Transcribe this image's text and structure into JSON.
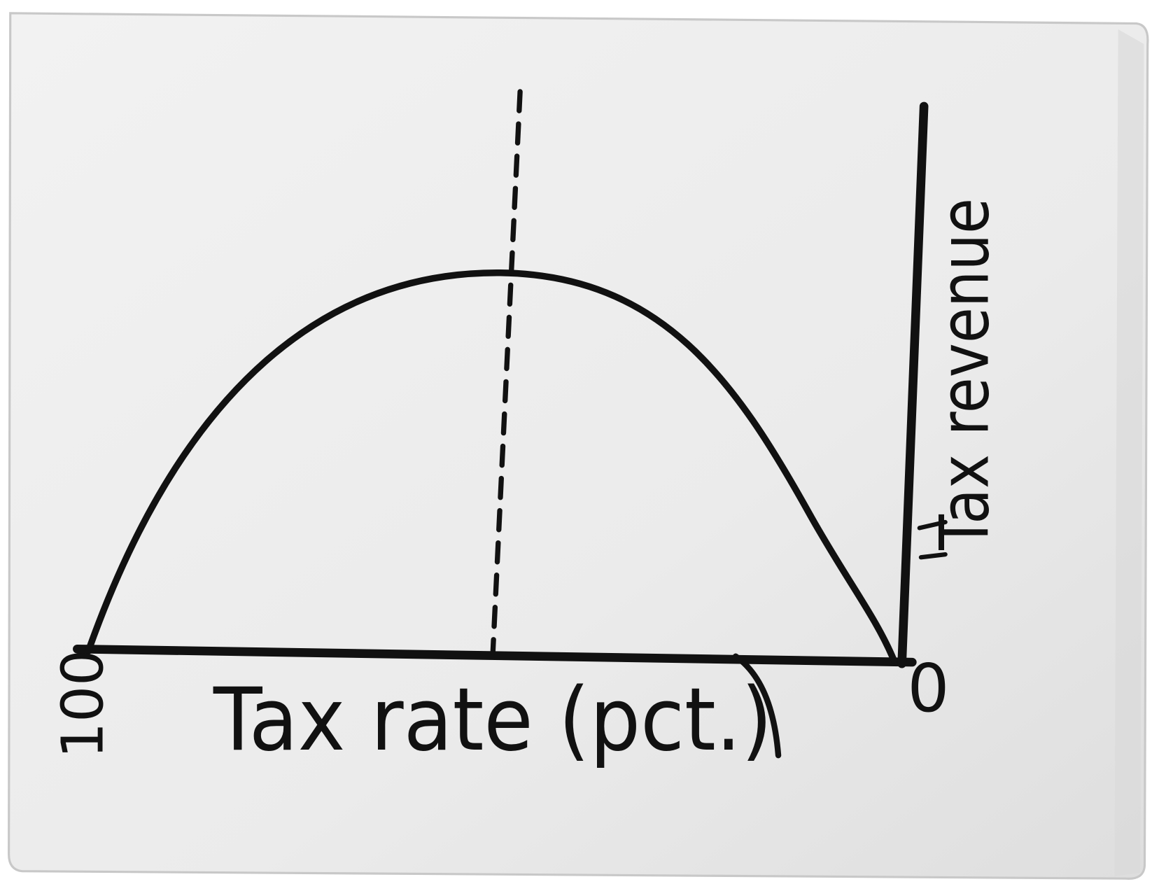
{
  "axes": {
    "x_label": "Tax rate (pct.)",
    "y_label": "Tax revenue",
    "x_start_label": "100",
    "x_end_label": "0"
  }
}
